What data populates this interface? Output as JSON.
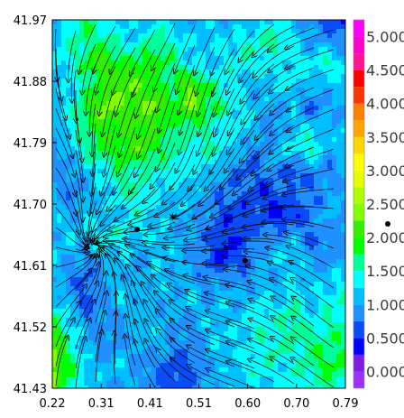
{
  "chart_data": {
    "type": "heatmap",
    "title": "",
    "xlabel": "",
    "ylabel": "",
    "xlim": [
      0.22,
      0.79
    ],
    "ylim": [
      41.43,
      41.97
    ],
    "x_tick_labels": [
      "0.22",
      "0.31",
      "0.41",
      "0.51",
      "0.60",
      "0.70",
      "0.79"
    ],
    "y_tick_labels": [
      "41.43",
      "41.52",
      "41.61",
      "41.70",
      "41.79",
      "41.88",
      "41.97"
    ],
    "colorbar": {
      "tick_labels": [
        "0.000",
        "0.500",
        "1.000",
        "1.500",
        "2.000",
        "2.500",
        "3.000",
        "3.500",
        "4.000",
        "4.500",
        "5.000"
      ],
      "range": [
        -0.25,
        5.25
      ],
      "bands": [
        {
          "from": -0.25,
          "to": 0.0,
          "color": "#9b30ff"
        },
        {
          "from": 0.0,
          "to": 0.25,
          "color": "#7a1fe0"
        },
        {
          "from": 0.25,
          "to": 0.5,
          "color": "#0000ff"
        },
        {
          "from": 0.5,
          "to": 0.75,
          "color": "#0a4cf5"
        },
        {
          "from": 0.75,
          "to": 1.0,
          "color": "#1e90ff"
        },
        {
          "from": 1.0,
          "to": 1.25,
          "color": "#00bfff"
        },
        {
          "from": 1.25,
          "to": 1.5,
          "color": "#00ffff"
        },
        {
          "from": 1.5,
          "to": 1.75,
          "color": "#00ff99"
        },
        {
          "from": 1.75,
          "to": 2.0,
          "color": "#00ff00"
        },
        {
          "from": 2.0,
          "to": 2.25,
          "color": "#33ee00"
        },
        {
          "from": 2.25,
          "to": 2.5,
          "color": "#7fff00"
        },
        {
          "from": 2.5,
          "to": 2.75,
          "color": "#b0ff00"
        },
        {
          "from": 2.75,
          "to": 3.0,
          "color": "#e6ff00"
        },
        {
          "from": 3.0,
          "to": 3.25,
          "color": "#ffff00"
        },
        {
          "from": 3.25,
          "to": 3.5,
          "color": "#ffd700"
        },
        {
          "from": 3.5,
          "to": 3.75,
          "color": "#ffa500"
        },
        {
          "from": 3.75,
          "to": 4.0,
          "color": "#ff7f00"
        },
        {
          "from": 4.0,
          "to": 4.25,
          "color": "#ff3300"
        },
        {
          "from": 4.25,
          "to": 4.5,
          "color": "#ff0000"
        },
        {
          "from": 4.5,
          "to": 4.75,
          "color": "#ff1493"
        },
        {
          "from": 4.75,
          "to": 5.0,
          "color": "#ff00cc"
        },
        {
          "from": 5.0,
          "to": 5.25,
          "color": "#ff00ff"
        }
      ]
    },
    "field_grid": {
      "x_range": [
        0.22,
        0.79
      ],
      "y_range": [
        41.43,
        41.97
      ],
      "rows_top_to_bottom": [
        [
          0.7,
          1.4,
          1.8,
          1.3,
          1.2,
          1.1,
          1.3,
          1.2,
          1.0,
          1.2,
          1.1,
          1.0,
          1.2,
          1.3,
          1.1,
          0.8,
          0.6,
          0.5
        ],
        [
          1.2,
          1.5,
          1.6,
          1.7,
          1.4,
          1.3,
          1.7,
          1.4,
          1.2,
          1.3,
          1.2,
          1.4,
          1.5,
          1.7,
          1.3,
          1.0,
          1.0,
          0.7
        ],
        [
          1.3,
          1.4,
          1.8,
          2.2,
          1.8,
          1.9,
          1.9,
          1.7,
          1.3,
          1.1,
          1.3,
          1.5,
          1.4,
          1.2,
          1.4,
          1.3,
          1.6,
          1.2
        ],
        [
          0.9,
          1.3,
          1.6,
          2.0,
          2.3,
          2.2,
          1.8,
          1.7,
          2.3,
          1.7,
          1.4,
          1.2,
          1.0,
          1.4,
          1.2,
          1.2,
          1.0,
          1.4
        ],
        [
          1.2,
          1.3,
          1.9,
          2.4,
          2.2,
          2.1,
          2.4,
          1.8,
          2.4,
          1.9,
          1.6,
          1.3,
          1.1,
          1.0,
          1.2,
          0.6,
          1.1,
          0.8
        ],
        [
          1.0,
          1.4,
          1.7,
          2.0,
          2.0,
          2.1,
          1.9,
          1.7,
          1.6,
          1.5,
          1.3,
          1.3,
          1.1,
          0.8,
          1.2,
          1.3,
          1.0,
          1.3
        ],
        [
          0.9,
          1.1,
          1.6,
          1.8,
          1.9,
          2.2,
          1.8,
          1.6,
          1.4,
          1.6,
          1.3,
          1.1,
          0.7,
          1.2,
          1.3,
          1.6,
          1.0,
          1.2
        ],
        [
          1.0,
          0.9,
          1.2,
          1.3,
          1.7,
          1.4,
          1.5,
          1.4,
          1.3,
          1.2,
          1.0,
          0.7,
          0.8,
          0.9,
          0.5,
          0.9,
          0.8,
          1.0
        ],
        [
          1.1,
          0.8,
          1.0,
          1.2,
          1.5,
          1.6,
          1.3,
          1.1,
          1.2,
          1.0,
          0.7,
          0.8,
          0.5,
          0.6,
          0.9,
          0.7,
          1.0,
          1.1
        ],
        [
          1.2,
          1.0,
          1.3,
          1.1,
          1.2,
          1.4,
          1.1,
          1.2,
          1.0,
          0.9,
          0.6,
          0.5,
          0.7,
          0.4,
          0.5,
          0.8,
          1.1,
          0.9
        ],
        [
          1.1,
          1.2,
          1.1,
          1.5,
          1.4,
          1.2,
          1.3,
          1.0,
          1.0,
          0.8,
          0.5,
          0.6,
          0.8,
          0.9,
          1.1,
          0.7,
          0.9,
          0.8
        ],
        [
          1.3,
          1.0,
          0.9,
          1.1,
          1.2,
          1.0,
          1.1,
          1.2,
          0.9,
          0.7,
          0.4,
          0.7,
          1.0,
          1.2,
          1.3,
          1.0,
          0.8,
          1.1
        ],
        [
          1.0,
          0.8,
          0.7,
          1.0,
          1.1,
          0.9,
          1.3,
          1.0,
          1.1,
          0.8,
          1.0,
          0.8,
          1.1,
          1.0,
          1.2,
          1.1,
          1.2,
          1.3
        ],
        [
          1.2,
          1.1,
          0.6,
          0.9,
          1.3,
          1.1,
          1.0,
          1.1,
          1.2,
          1.0,
          1.2,
          1.0,
          1.3,
          1.2,
          1.5,
          1.2,
          1.4,
          1.5
        ],
        [
          1.9,
          1.3,
          0.9,
          1.0,
          0.8,
          1.2,
          1.1,
          1.0,
          0.9,
          1.2,
          1.1,
          1.3,
          1.5,
          1.4,
          1.7,
          1.3,
          1.5,
          1.6
        ],
        [
          2.3,
          1.6,
          1.1,
          0.8,
          1.0,
          1.0,
          1.2,
          0.9,
          0.8,
          1.1,
          1.3,
          1.2,
          1.4,
          1.6,
          1.5,
          1.7,
          1.6,
          1.8
        ],
        [
          2.5,
          1.8,
          1.2,
          1.1,
          1.2,
          0.9,
          0.8,
          0.6,
          0.7,
          1.0,
          1.1,
          1.3,
          1.5,
          1.3,
          1.4,
          1.6,
          1.9,
          1.7
        ],
        [
          2.2,
          1.5,
          1.3,
          1.0,
          0.9,
          1.1,
          0.7,
          0.5,
          0.8,
          1.0,
          1.2,
          1.1,
          1.3,
          1.2,
          1.5,
          1.4,
          1.6,
          1.5
        ]
      ]
    },
    "markers": [
      {
        "x": 0.385,
        "y": 41.663,
        "shape": "dot"
      },
      {
        "x": 0.454,
        "y": 41.681,
        "shape": "star"
      },
      {
        "x": 0.595,
        "y": 41.617,
        "shape": "dot"
      }
    ]
  }
}
